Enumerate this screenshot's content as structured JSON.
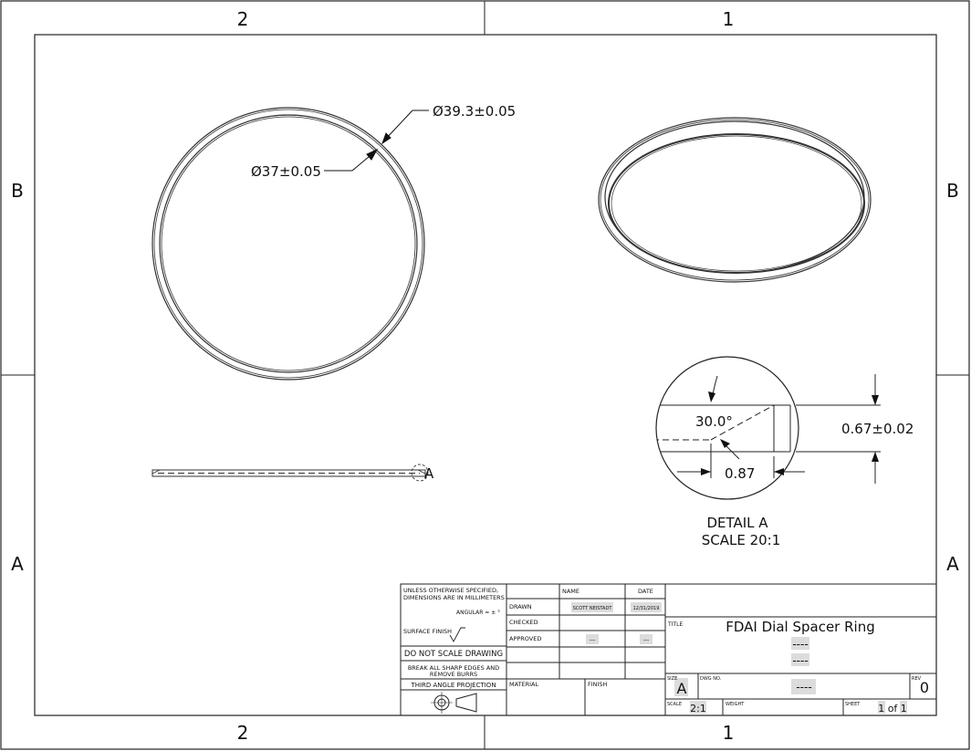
{
  "zones": {
    "top": [
      "2",
      "1"
    ],
    "bottom": [
      "2",
      "1"
    ],
    "left": [
      "B",
      "A"
    ],
    "right": [
      "B",
      "A"
    ]
  },
  "dimensions": {
    "outer_diameter": "Ø39.3±0.05",
    "inner_diameter": "Ø37±0.05",
    "chamfer_angle": "30.0°",
    "thickness": "0.67±0.02",
    "chamfer_length": "0.87"
  },
  "detail": {
    "marker": "A",
    "title": "DETAIL A",
    "scale": "SCALE 20:1"
  },
  "title_block": {
    "notes": {
      "line1": "UNLESS OTHERWISE SPECIFIED,",
      "line2": "DIMENSIONS ARE IN MILLIMETERS",
      "angular": "ANGULAR = ± °",
      "surface_finish": "SURFACE FINISH",
      "do_not_scale": "DO NOT SCALE DRAWING",
      "break_edges_1": "BREAK ALL SHARP EDGES AND",
      "break_edges_2": "REMOVE BURRS",
      "projection": "THIRD ANGLE PROJECTION"
    },
    "headers": {
      "name": "NAME",
      "date": "DATE"
    },
    "rows": {
      "drawn": "DRAWN",
      "checked": "CHECKED",
      "approved": "APPROVED"
    },
    "drawn_name": "SCOTT NEISTADT",
    "drawn_date": "12/31/2019",
    "approved_name": "---",
    "approved_date": "---",
    "material_label": "MATERIAL",
    "finish_label": "FINISH",
    "title_label": "TITLE",
    "title": "FDAI Dial Spacer Ring",
    "title_line2": "----",
    "title_line3": "----",
    "size_label": "SIZE",
    "size": "A",
    "dwg_no_label": "DWG NO.",
    "dwg_no": "----",
    "rev_label": "REV",
    "rev": "0",
    "scale_label": "SCALE",
    "scale": "2:1",
    "weight_label": "WEIGHT",
    "sheet_label": "SHEET",
    "sheet": "1 of 1"
  }
}
